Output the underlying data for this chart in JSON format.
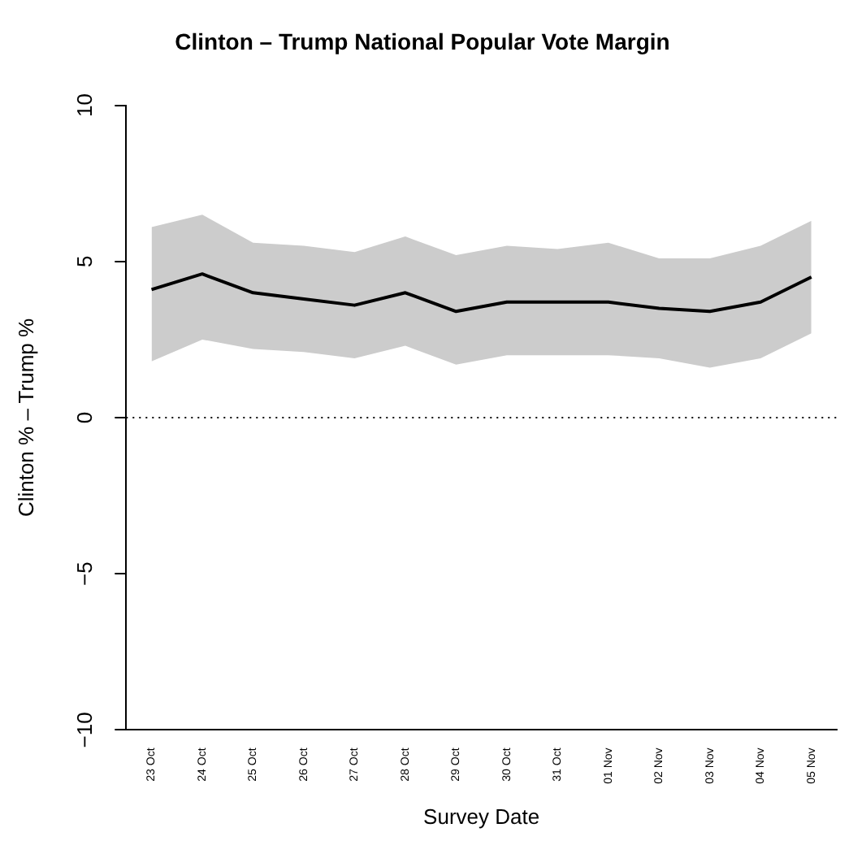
{
  "chart_data": {
    "type": "line",
    "title": "Clinton – Trump National Popular Vote Margin",
    "xlabel": "Survey Date",
    "ylabel": "Clinton % – Trump %",
    "categories": [
      "23 Oct",
      "24 Oct",
      "25 Oct",
      "26 Oct",
      "27 Oct",
      "28 Oct",
      "29 Oct",
      "30 Oct",
      "31 Oct",
      "01 Nov",
      "02 Nov",
      "03 Nov",
      "04 Nov",
      "05 Nov"
    ],
    "series": [
      {
        "color": "#000000",
        "values": [
          4.1,
          4.6,
          4.0,
          3.8,
          3.6,
          4.0,
          3.4,
          3.7,
          3.7,
          3.7,
          3.5,
          3.4,
          3.7,
          4.5
        ],
        "lower": [
          1.8,
          2.5,
          2.2,
          2.1,
          1.9,
          2.3,
          1.7,
          2.0,
          2.0,
          2.0,
          1.9,
          1.6,
          1.9,
          2.7
        ],
        "upper": [
          6.1,
          6.5,
          5.6,
          5.5,
          5.3,
          5.8,
          5.2,
          5.5,
          5.4,
          5.6,
          5.1,
          5.1,
          5.5,
          6.3
        ]
      }
    ],
    "ylim": [
      -10,
      10
    ],
    "yticks": [
      -10,
      -5,
      0,
      5,
      10
    ],
    "grid": false,
    "legend": false,
    "marker": "none",
    "line_style": "solid",
    "ref_lines": [
      {
        "axis": "y",
        "value": 0,
        "color": "#000000",
        "line_style": "dotted"
      }
    ]
  }
}
